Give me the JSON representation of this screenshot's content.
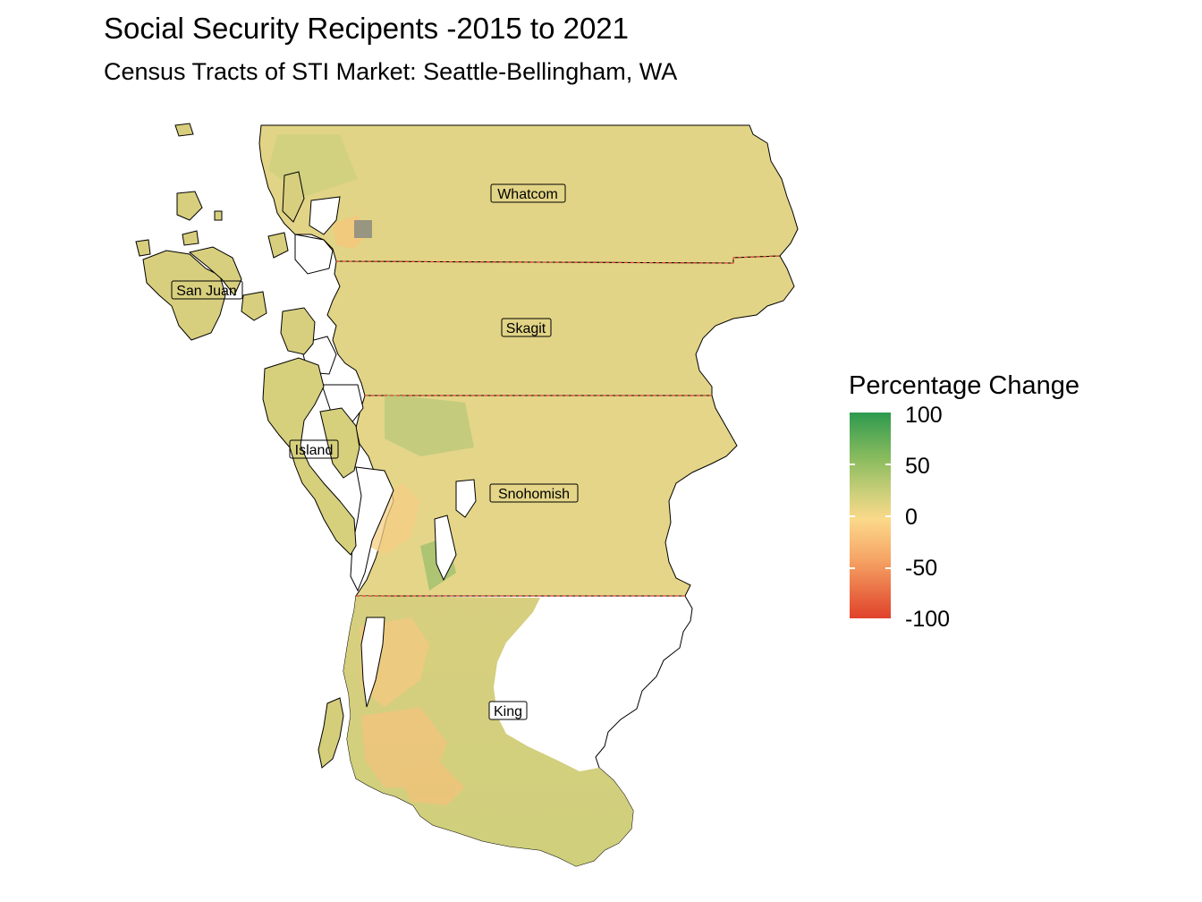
{
  "title": "Social Security Recipents -2015 to 2021",
  "subtitle": "Census Tracts of STI Market: Seattle-Bellingham, WA",
  "counties": [
    "Whatcom",
    "San Juan",
    "Skagit",
    "Island",
    "Snohomish",
    "King"
  ],
  "legend": {
    "title": "Percentage Change",
    "labels": [
      "100",
      "50",
      "0",
      "-50",
      "-100"
    ],
    "colors": {
      "high": "#2e9a4e",
      "mid": "#fbd98a",
      "low": "#e0422b",
      "no_data": "#808080"
    }
  }
}
